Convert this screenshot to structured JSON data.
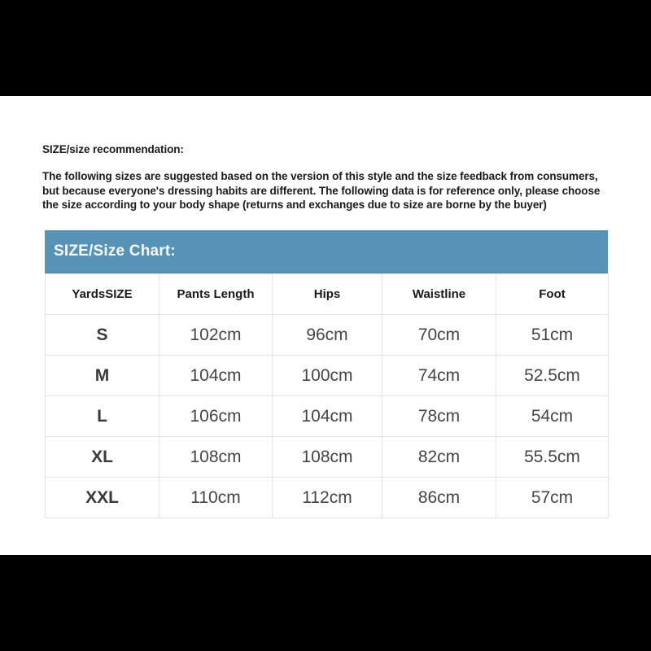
{
  "page": {
    "background": "#ffffff",
    "letterbox_color": "#000000"
  },
  "recommendation": {
    "heading": "SIZE/size recommendation:",
    "body": "The following sizes are suggested based on the version of this style and the size feedback from consumers, but because everyone's dressing habits are different. The following data is for reference only, please choose the size according to your body shape (returns and exchanges due to size are borne by the buyer)"
  },
  "size_chart": {
    "title": "SIZE/Size Chart:",
    "header_bg": "#5793b7",
    "header_text_color": "#f7fbfd",
    "columns": [
      "YardsSIZE",
      "Pants Length",
      "Hips",
      "Waistline",
      "Foot"
    ],
    "rows": [
      [
        "S",
        "102cm",
        "96cm",
        "70cm",
        "51cm"
      ],
      [
        "M",
        "104cm",
        "100cm",
        "74cm",
        "52.5cm"
      ],
      [
        "L",
        "106cm",
        "104cm",
        "78cm",
        "54cm"
      ],
      [
        "XL",
        "108cm",
        "108cm",
        "82cm",
        "55.5cm"
      ],
      [
        "XXL",
        "110cm",
        "112cm",
        "86cm",
        "57cm"
      ]
    ]
  }
}
